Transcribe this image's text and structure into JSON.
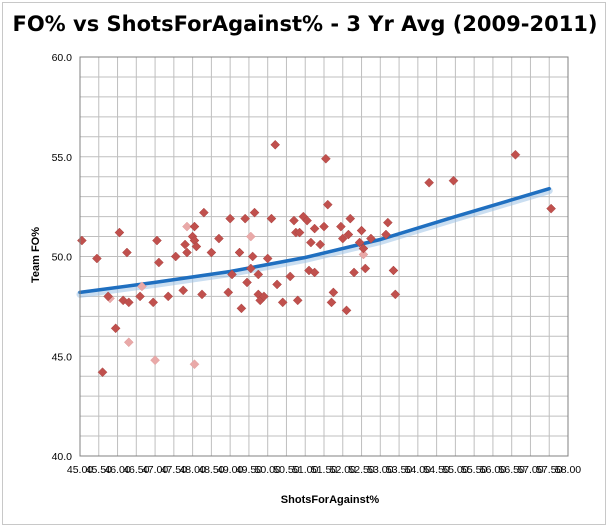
{
  "chart_data": {
    "type": "scatter",
    "title": "FO% vs ShotsForAgainst% - 3 Yr Avg (2009-2011)",
    "xlabel": "ShotsForAgainst%",
    "ylabel": "Team FO%",
    "xlim": [
      45.0,
      58.0
    ],
    "ylim": [
      40.0,
      60.0
    ],
    "x_ticks": [
      "45.00",
      "45.50",
      "46.00",
      "46.50",
      "47.00",
      "47.50",
      "48.00",
      "48.50",
      "49.00",
      "49.50",
      "50.00",
      "50.50",
      "51.00",
      "51.50",
      "52.00",
      "52.50",
      "53.00",
      "53.50",
      "54.00",
      "54.50",
      "55.00",
      "55.50",
      "56.00",
      "56.50",
      "57.00",
      "57.50",
      "58.00"
    ],
    "y_ticks": [
      "40.0",
      "45.0",
      "50.0",
      "55.0",
      "60.0"
    ],
    "x_tick_values": [
      45.0,
      45.5,
      46.0,
      46.5,
      47.0,
      47.5,
      48.0,
      48.5,
      49.0,
      49.5,
      50.0,
      50.5,
      51.0,
      51.5,
      52.0,
      52.5,
      53.0,
      53.5,
      54.0,
      54.5,
      55.0,
      55.5,
      56.0,
      56.5,
      57.0,
      57.5,
      58.0
    ],
    "y_tick_values": [
      40.0,
      45.0,
      50.0,
      55.0,
      60.0
    ],
    "grid": true,
    "marker": "diamond",
    "colors": {
      "points": "#c0504d",
      "trend": "#1f6fc0",
      "grid": "#bfbfbf"
    },
    "points": [
      [
        45.05,
        50.8
      ],
      [
        45.45,
        49.9
      ],
      [
        45.6,
        44.2
      ],
      [
        45.75,
        48.0
      ],
      [
        45.95,
        46.4
      ],
      [
        46.05,
        51.2
      ],
      [
        46.15,
        47.8
      ],
      [
        46.25,
        50.2
      ],
      [
        46.3,
        47.7
      ],
      [
        46.6,
        48.0
      ],
      [
        46.95,
        47.7
      ],
      [
        47.05,
        50.8
      ],
      [
        47.1,
        49.7
      ],
      [
        47.35,
        48.0
      ],
      [
        47.55,
        50.0
      ],
      [
        47.75,
        48.3
      ],
      [
        47.8,
        50.6
      ],
      [
        47.85,
        50.2
      ],
      [
        48.0,
        51.0
      ],
      [
        48.05,
        51.5
      ],
      [
        48.05,
        50.8
      ],
      [
        48.1,
        50.5
      ],
      [
        48.25,
        48.1
      ],
      [
        48.3,
        52.2
      ],
      [
        48.5,
        50.2
      ],
      [
        48.7,
        50.9
      ],
      [
        48.95,
        48.2
      ],
      [
        49.0,
        51.9
      ],
      [
        49.05,
        49.1
      ],
      [
        49.25,
        50.2
      ],
      [
        49.3,
        47.4
      ],
      [
        49.4,
        51.9
      ],
      [
        49.45,
        48.7
      ],
      [
        49.55,
        49.4
      ],
      [
        49.6,
        50.0
      ],
      [
        49.65,
        52.2
      ],
      [
        49.75,
        49.1
      ],
      [
        49.75,
        48.1
      ],
      [
        49.8,
        47.8
      ],
      [
        49.9,
        48.0
      ],
      [
        50.0,
        49.9
      ],
      [
        50.1,
        51.9
      ],
      [
        50.2,
        55.6
      ],
      [
        50.25,
        48.6
      ],
      [
        50.4,
        47.7
      ],
      [
        50.6,
        49.0
      ],
      [
        50.7,
        51.8
      ],
      [
        50.75,
        51.2
      ],
      [
        50.8,
        47.8
      ],
      [
        50.85,
        51.2
      ],
      [
        50.95,
        52.0
      ],
      [
        51.05,
        51.8
      ],
      [
        51.1,
        49.3
      ],
      [
        51.15,
        50.7
      ],
      [
        51.25,
        49.2
      ],
      [
        51.25,
        51.4
      ],
      [
        51.4,
        50.6
      ],
      [
        51.5,
        51.5
      ],
      [
        51.55,
        54.9
      ],
      [
        51.6,
        52.6
      ],
      [
        51.7,
        47.7
      ],
      [
        51.75,
        48.2
      ],
      [
        51.95,
        51.5
      ],
      [
        52.0,
        50.9
      ],
      [
        52.1,
        47.3
      ],
      [
        52.15,
        51.1
      ],
      [
        52.2,
        51.9
      ],
      [
        52.3,
        49.2
      ],
      [
        52.45,
        50.7
      ],
      [
        52.5,
        51.3
      ],
      [
        52.55,
        50.4
      ],
      [
        52.6,
        49.4
      ],
      [
        52.75,
        50.9
      ],
      [
        53.15,
        51.1
      ],
      [
        53.2,
        51.7
      ],
      [
        53.35,
        49.3
      ],
      [
        53.4,
        48.1
      ],
      [
        54.3,
        53.7
      ],
      [
        54.95,
        53.8
      ],
      [
        56.6,
        55.1
      ],
      [
        57.55,
        52.4
      ]
    ],
    "faded_points": [
      [
        46.3,
        45.7
      ],
      [
        47.0,
        44.8
      ],
      [
        47.85,
        51.5
      ],
      [
        48.05,
        44.6
      ],
      [
        49.55,
        51.0
      ],
      [
        52.55,
        50.1
      ],
      [
        45.8,
        47.9
      ],
      [
        46.65,
        48.5
      ]
    ],
    "trend_line": [
      [
        45.0,
        48.2
      ],
      [
        47.0,
        48.7
      ],
      [
        49.0,
        49.25
      ],
      [
        51.0,
        49.95
      ],
      [
        53.0,
        50.85
      ],
      [
        55.0,
        52.0
      ],
      [
        57.5,
        53.4
      ]
    ]
  }
}
